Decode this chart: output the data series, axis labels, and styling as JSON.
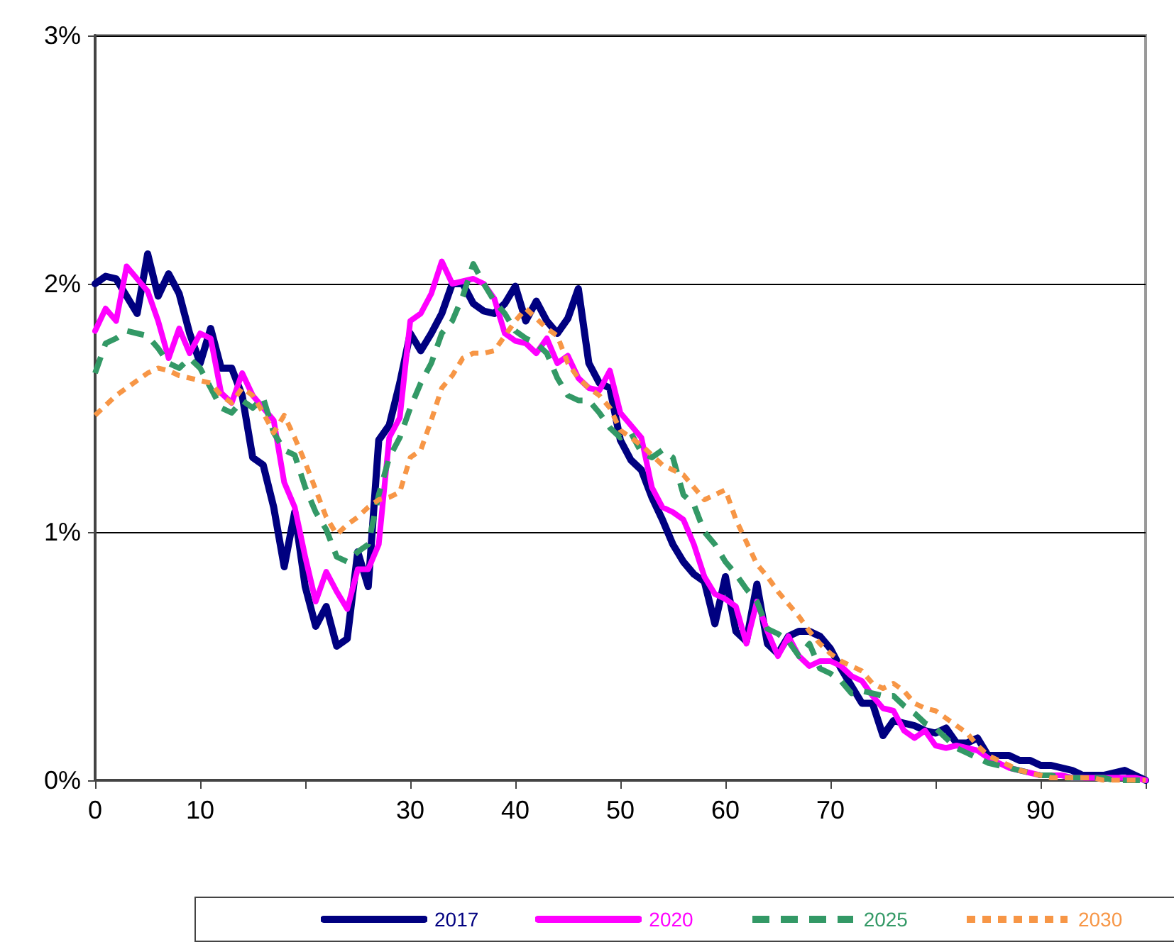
{
  "chart_data": {
    "type": "line",
    "x": [
      0,
      1,
      2,
      3,
      4,
      5,
      6,
      7,
      8,
      9,
      10,
      11,
      12,
      13,
      14,
      15,
      16,
      17,
      18,
      19,
      20,
      21,
      22,
      23,
      24,
      25,
      26,
      27,
      28,
      29,
      30,
      31,
      32,
      33,
      34,
      35,
      36,
      37,
      38,
      39,
      40,
      41,
      42,
      43,
      44,
      45,
      46,
      47,
      48,
      49,
      50,
      51,
      52,
      53,
      54,
      55,
      56,
      57,
      58,
      59,
      60,
      61,
      62,
      63,
      64,
      65,
      66,
      67,
      68,
      69,
      70,
      71,
      72,
      73,
      74,
      75,
      76,
      77,
      78,
      79,
      80,
      81,
      82,
      83,
      84,
      85,
      86,
      87,
      88,
      89,
      90,
      91,
      92,
      93,
      94,
      95,
      96,
      97,
      98,
      99,
      100
    ],
    "series": [
      {
        "name": "2017",
        "color": "#000080",
        "line_style": "solid",
        "values": [
          2.0,
          2.03,
          2.02,
          1.95,
          1.88,
          2.12,
          1.95,
          2.04,
          1.96,
          1.8,
          1.68,
          1.82,
          1.66,
          1.66,
          1.55,
          1.3,
          1.27,
          1.1,
          0.86,
          1.08,
          0.78,
          0.62,
          0.7,
          0.54,
          0.57,
          0.92,
          0.78,
          1.37,
          1.43,
          1.6,
          1.8,
          1.73,
          1.8,
          1.88,
          2.0,
          2.0,
          1.92,
          1.89,
          1.88,
          1.92,
          1.99,
          1.85,
          1.93,
          1.85,
          1.8,
          1.86,
          1.98,
          1.68,
          1.6,
          1.58,
          1.37,
          1.29,
          1.25,
          1.14,
          1.05,
          0.95,
          0.88,
          0.83,
          0.8,
          0.63,
          0.82,
          0.6,
          0.56,
          0.79,
          0.55,
          0.51,
          0.58,
          0.6,
          0.6,
          0.58,
          0.53,
          0.45,
          0.38,
          0.31,
          0.31,
          0.18,
          0.24,
          0.23,
          0.22,
          0.2,
          0.19,
          0.21,
          0.15,
          0.15,
          0.17,
          0.1,
          0.1,
          0.1,
          0.08,
          0.08,
          0.06,
          0.06,
          0.05,
          0.04,
          0.02,
          0.02,
          0.02,
          0.03,
          0.04,
          0.02,
          0.0
        ]
      },
      {
        "name": "2020",
        "color": "#ff00ff",
        "line_style": "solid",
        "values": [
          1.81,
          1.9,
          1.85,
          2.07,
          2.02,
          1.97,
          1.85,
          1.7,
          1.82,
          1.72,
          1.8,
          1.78,
          1.56,
          1.52,
          1.64,
          1.55,
          1.5,
          1.45,
          1.2,
          1.1,
          0.9,
          0.72,
          0.84,
          0.76,
          0.69,
          0.85,
          0.85,
          0.95,
          1.38,
          1.46,
          1.85,
          1.88,
          1.96,
          2.09,
          2.0,
          2.01,
          2.02,
          2.0,
          1.94,
          1.8,
          1.77,
          1.76,
          1.72,
          1.78,
          1.68,
          1.71,
          1.62,
          1.58,
          1.57,
          1.65,
          1.48,
          1.43,
          1.38,
          1.18,
          1.1,
          1.08,
          1.05,
          0.95,
          0.82,
          0.75,
          0.73,
          0.7,
          0.55,
          0.72,
          0.6,
          0.5,
          0.58,
          0.5,
          0.46,
          0.48,
          0.48,
          0.46,
          0.42,
          0.4,
          0.34,
          0.29,
          0.28,
          0.2,
          0.17,
          0.2,
          0.14,
          0.13,
          0.14,
          0.13,
          0.12,
          0.09,
          0.07,
          0.05,
          0.04,
          0.03,
          0.02,
          0.02,
          0.02,
          0.01,
          0.01,
          0.01,
          0.01,
          0.01,
          0.01,
          0.01,
          0.0
        ]
      },
      {
        "name": "2025",
        "color": "#339966",
        "line_style": "dashed",
        "values": [
          1.64,
          1.76,
          1.78,
          1.81,
          1.8,
          1.79,
          1.74,
          1.68,
          1.66,
          1.7,
          1.66,
          1.58,
          1.5,
          1.48,
          1.53,
          1.5,
          1.54,
          1.4,
          1.33,
          1.31,
          1.18,
          1.08,
          1.01,
          0.9,
          0.88,
          0.92,
          0.95,
          1.15,
          1.3,
          1.38,
          1.5,
          1.6,
          1.68,
          1.8,
          1.85,
          1.95,
          2.08,
          2.0,
          1.93,
          1.88,
          1.81,
          1.78,
          1.76,
          1.72,
          1.62,
          1.55,
          1.53,
          1.53,
          1.48,
          1.42,
          1.38,
          1.4,
          1.32,
          1.3,
          1.33,
          1.3,
          1.15,
          1.11,
          1.0,
          0.95,
          0.88,
          0.83,
          0.77,
          0.72,
          0.61,
          0.59,
          0.56,
          0.5,
          0.55,
          0.45,
          0.43,
          0.4,
          0.35,
          0.36,
          0.35,
          0.34,
          0.34,
          0.3,
          0.27,
          0.23,
          0.21,
          0.17,
          0.13,
          0.11,
          0.09,
          0.07,
          0.06,
          0.05,
          0.04,
          0.03,
          0.02,
          0.02,
          0.01,
          0.01,
          0.01,
          0.01,
          0.01,
          0.0,
          0.0,
          0.0,
          0.0
        ]
      },
      {
        "name": "2030",
        "color": "#f79646",
        "line_style": "dotted",
        "values": [
          1.47,
          1.51,
          1.55,
          1.58,
          1.61,
          1.64,
          1.66,
          1.65,
          1.63,
          1.62,
          1.61,
          1.6,
          1.55,
          1.52,
          1.58,
          1.55,
          1.48,
          1.4,
          1.47,
          1.38,
          1.28,
          1.17,
          1.06,
          0.99,
          1.03,
          1.06,
          1.1,
          1.13,
          1.14,
          1.16,
          1.3,
          1.33,
          1.45,
          1.58,
          1.63,
          1.7,
          1.72,
          1.72,
          1.73,
          1.79,
          1.85,
          1.9,
          1.86,
          1.82,
          1.79,
          1.68,
          1.62,
          1.58,
          1.55,
          1.5,
          1.41,
          1.38,
          1.35,
          1.31,
          1.27,
          1.25,
          1.23,
          1.18,
          1.13,
          1.15,
          1.17,
          1.05,
          0.96,
          0.87,
          0.82,
          0.76,
          0.71,
          0.66,
          0.6,
          0.55,
          0.51,
          0.48,
          0.46,
          0.44,
          0.39,
          0.37,
          0.39,
          0.36,
          0.31,
          0.29,
          0.28,
          0.25,
          0.22,
          0.19,
          0.14,
          0.1,
          0.08,
          0.06,
          0.04,
          0.03,
          0.02,
          0.01,
          0.01,
          0.01,
          0.01,
          0.01,
          0.0,
          0.0,
          0.0,
          0.0,
          0.0
        ]
      }
    ],
    "xlim": [
      0,
      100
    ],
    "xticks": [
      0,
      10,
      {
        "value": 20,
        "label": null
      },
      30,
      40,
      50,
      60,
      70,
      {
        "value": 80,
        "label": null
      },
      90,
      {
        "value": 100,
        "label": null
      }
    ],
    "ylim": [
      0,
      3
    ],
    "yticks": [
      {
        "value": 0,
        "label": "0%"
      },
      {
        "value": 1,
        "label": "1%"
      },
      {
        "value": 2,
        "label": "2%"
      },
      {
        "value": 3,
        "label": "3%"
      }
    ],
    "grid": "y",
    "legend": "bottom",
    "marker": "none"
  }
}
